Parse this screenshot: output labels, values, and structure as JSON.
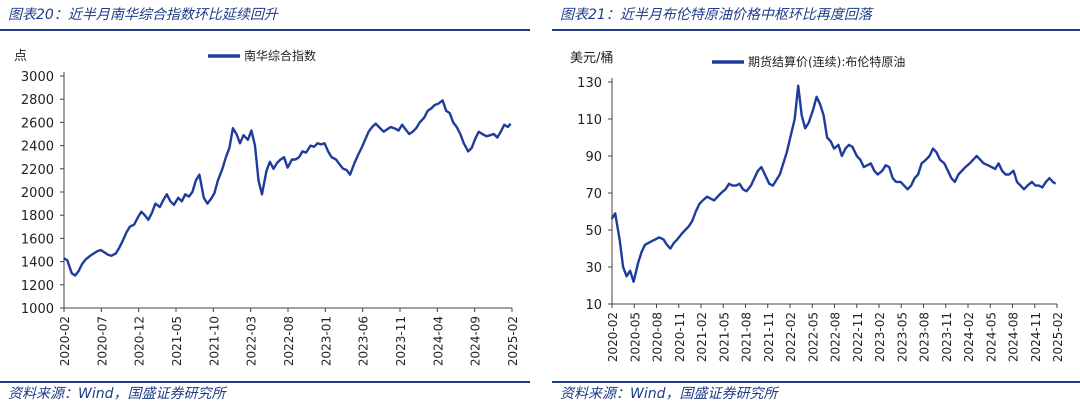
{
  "figures": [
    {
      "title": "图表20：近半月南华综合指数环比延续回升",
      "source": "资料来源：Wind，国盛证券研究所"
    },
    {
      "title": "图表21：近半月布伦特原油价格中枢环比再度回落",
      "source": "资料来源：Wind，国盛证券研究所"
    }
  ],
  "chart_data": [
    {
      "type": "line",
      "title": "",
      "ylabel": "点",
      "xlabel": "",
      "ylim": [
        1000,
        3000
      ],
      "yticks": [
        1000,
        1200,
        1400,
        1600,
        1800,
        2000,
        2200,
        2400,
        2600,
        2800,
        3000
      ],
      "xlim": [
        2020.083,
        2025.167
      ],
      "xticks": [
        "2020-02",
        "2020-07",
        "2020-12",
        "2021-05",
        "2021-10",
        "2022-03",
        "2022-08",
        "2023-01",
        "2023-06",
        "2023-11",
        "2024-04",
        "2024-09",
        "2025-02"
      ],
      "legend_position": "top-center",
      "line_color": "#1f3c9c",
      "series": [
        {
          "name": "南华综合指数",
          "x": [
            2020.08,
            2020.12,
            2020.17,
            2020.21,
            2020.25,
            2020.29,
            2020.33,
            2020.38,
            2020.42,
            2020.46,
            2020.5,
            2020.54,
            2020.58,
            2020.62,
            2020.67,
            2020.71,
            2020.75,
            2020.79,
            2020.83,
            2020.88,
            2020.92,
            2020.96,
            2021.0,
            2021.04,
            2021.08,
            2021.12,
            2021.17,
            2021.21,
            2021.25,
            2021.29,
            2021.33,
            2021.38,
            2021.42,
            2021.46,
            2021.5,
            2021.54,
            2021.58,
            2021.62,
            2021.67,
            2021.71,
            2021.75,
            2021.79,
            2021.83,
            2021.88,
            2021.92,
            2021.96,
            2022.0,
            2022.04,
            2022.08,
            2022.12,
            2022.17,
            2022.21,
            2022.25,
            2022.29,
            2022.33,
            2022.38,
            2022.42,
            2022.46,
            2022.5,
            2022.54,
            2022.58,
            2022.62,
            2022.67,
            2022.71,
            2022.75,
            2022.79,
            2022.83,
            2022.88,
            2022.92,
            2022.96,
            2023.0,
            2023.04,
            2023.08,
            2023.12,
            2023.17,
            2023.21,
            2023.25,
            2023.29,
            2023.33,
            2023.38,
            2023.42,
            2023.46,
            2023.5,
            2023.54,
            2023.58,
            2023.62,
            2023.67,
            2023.71,
            2023.75,
            2023.79,
            2023.83,
            2023.88,
            2023.92,
            2023.96,
            2024.0,
            2024.04,
            2024.08,
            2024.12,
            2024.17,
            2024.21,
            2024.25,
            2024.29,
            2024.33,
            2024.38,
            2024.42,
            2024.46,
            2024.5,
            2024.54,
            2024.58,
            2024.62,
            2024.67,
            2024.71,
            2024.75,
            2024.79,
            2024.83,
            2024.88,
            2024.92,
            2024.96,
            2025.0,
            2025.04,
            2025.08,
            2025.12,
            2025.15
          ],
          "values": [
            1430,
            1410,
            1300,
            1280,
            1320,
            1380,
            1420,
            1450,
            1470,
            1490,
            1500,
            1480,
            1460,
            1450,
            1470,
            1520,
            1580,
            1650,
            1700,
            1720,
            1780,
            1830,
            1800,
            1760,
            1820,
            1900,
            1870,
            1930,
            1980,
            1920,
            1890,
            1950,
            1920,
            1980,
            1960,
            2000,
            2100,
            2150,
            1950,
            1900,
            1940,
            1990,
            2100,
            2200,
            2300,
            2380,
            2550,
            2500,
            2420,
            2490,
            2450,
            2530,
            2400,
            2100,
            1980,
            2180,
            2260,
            2200,
            2250,
            2280,
            2300,
            2210,
            2280,
            2280,
            2300,
            2350,
            2340,
            2400,
            2390,
            2420,
            2410,
            2420,
            2350,
            2300,
            2280,
            2240,
            2200,
            2190,
            2150,
            2250,
            2320,
            2380,
            2450,
            2520,
            2560,
            2590,
            2550,
            2520,
            2540,
            2560,
            2550,
            2530,
            2580,
            2540,
            2500,
            2520,
            2550,
            2600,
            2640,
            2700,
            2720,
            2750,
            2760,
            2790,
            2700,
            2680,
            2600,
            2560,
            2500,
            2420,
            2350,
            2380,
            2460,
            2520,
            2500,
            2480,
            2490,
            2500,
            2470,
            2520,
            2580,
            2560,
            2590
          ]
        }
      ]
    },
    {
      "type": "line",
      "title": "",
      "ylabel": "美元/桶",
      "xlabel": "",
      "ylim": [
        10,
        130
      ],
      "yticks": [
        10,
        30,
        50,
        70,
        90,
        110,
        130
      ],
      "xlim": [
        2020.083,
        2025.167
      ],
      "xticks": [
        "2020-02",
        "2020-05",
        "2020-08",
        "2020-11",
        "2021-02",
        "2021-05",
        "2021-08",
        "2021-11",
        "2022-02",
        "2022-05",
        "2022-08",
        "2022-11",
        "2023-02",
        "2023-05",
        "2023-08",
        "2023-11",
        "2024-02",
        "2024-05",
        "2024-08",
        "2024-11",
        "2025-02"
      ],
      "legend_position": "top-center",
      "line_color": "#1f3c9c",
      "series": [
        {
          "name": "期货结算价(连续):布伦特原油",
          "x": [
            2020.08,
            2020.12,
            2020.17,
            2020.21,
            2020.25,
            2020.29,
            2020.33,
            2020.38,
            2020.42,
            2020.46,
            2020.5,
            2020.54,
            2020.58,
            2020.62,
            2020.67,
            2020.71,
            2020.75,
            2020.79,
            2020.83,
            2020.88,
            2020.92,
            2020.96,
            2021.0,
            2021.04,
            2021.08,
            2021.12,
            2021.17,
            2021.21,
            2021.25,
            2021.29,
            2021.33,
            2021.38,
            2021.42,
            2021.46,
            2021.5,
            2021.54,
            2021.58,
            2021.62,
            2021.67,
            2021.71,
            2021.75,
            2021.79,
            2021.83,
            2021.88,
            2021.92,
            2021.96,
            2022.0,
            2022.04,
            2022.08,
            2022.12,
            2022.17,
            2022.21,
            2022.25,
            2022.29,
            2022.33,
            2022.38,
            2022.42,
            2022.46,
            2022.5,
            2022.54,
            2022.58,
            2022.62,
            2022.67,
            2022.71,
            2022.75,
            2022.79,
            2022.83,
            2022.88,
            2022.92,
            2022.96,
            2023.0,
            2023.04,
            2023.08,
            2023.12,
            2023.17,
            2023.21,
            2023.25,
            2023.29,
            2023.33,
            2023.38,
            2023.42,
            2023.46,
            2023.5,
            2023.54,
            2023.58,
            2023.62,
            2023.67,
            2023.71,
            2023.75,
            2023.79,
            2023.83,
            2023.88,
            2023.92,
            2023.96,
            2024.0,
            2024.04,
            2024.08,
            2024.12,
            2024.17,
            2024.21,
            2024.25,
            2024.29,
            2024.33,
            2024.38,
            2024.42,
            2024.46,
            2024.5,
            2024.54,
            2024.58,
            2024.62,
            2024.67,
            2024.71,
            2024.75,
            2024.79,
            2024.83,
            2024.88,
            2024.92,
            2024.96,
            2025.0,
            2025.04,
            2025.08,
            2025.12,
            2025.15
          ],
          "values": [
            56,
            59,
            45,
            30,
            25,
            28,
            22,
            32,
            38,
            42,
            43,
            44,
            45,
            46,
            45,
            42,
            40,
            43,
            45,
            48,
            50,
            52,
            55,
            60,
            64,
            66,
            68,
            67,
            66,
            68,
            70,
            72,
            75,
            74,
            74,
            75,
            72,
            71,
            74,
            78,
            82,
            84,
            80,
            75,
            74,
            77,
            80,
            86,
            92,
            100,
            110,
            128,
            112,
            105,
            108,
            115,
            122,
            118,
            112,
            100,
            98,
            94,
            96,
            90,
            94,
            96,
            95,
            90,
            88,
            84,
            85,
            86,
            82,
            80,
            82,
            85,
            84,
            78,
            76,
            76,
            74,
            72,
            74,
            78,
            80,
            86,
            88,
            90,
            94,
            92,
            88,
            86,
            82,
            78,
            76,
            80,
            82,
            84,
            86,
            88,
            90,
            88,
            86,
            85,
            84,
            83,
            86,
            82,
            80,
            80,
            82,
            76,
            74,
            72,
            74,
            76,
            74,
            74,
            73,
            76,
            78,
            76,
            75
          ]
        }
      ]
    }
  ]
}
